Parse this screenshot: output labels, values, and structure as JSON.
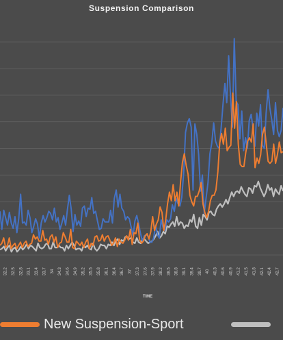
{
  "chart_data": {
    "type": "line",
    "title": "Suspension Comparison",
    "xlabel": "TIME",
    "ylabel": "",
    "x_tick_labels": [
      "32.2",
      "32.5",
      "32.8",
      "33.1",
      "33.4",
      "33.7",
      "34",
      "34.3",
      "34.6",
      "34.9",
      "35.2",
      "35.5",
      "35.8",
      "36.1",
      "36.4",
      "36.7",
      "37",
      "37.3",
      "37.6",
      "37.9",
      "38.2",
      "38.5",
      "38.8",
      "39.1",
      "39.4",
      "39.7",
      "40",
      "40.3",
      "40.6",
      "40.9",
      "41.2",
      "41.5",
      "41.8",
      "42.1",
      "42.4",
      "42.7"
    ],
    "grid": true,
    "legend_position": "bottom",
    "series": [
      {
        "name": "",
        "color": "#4472c4",
        "values": [
          0.41,
          0.24,
          0.42,
          0.35,
          0.28,
          0.4,
          0.3,
          0.25,
          0.36,
          0.21,
          0.34,
          0.57,
          0.3,
          0.31,
          0.28,
          0.42,
          0.35,
          0.21,
          0.27,
          0.34,
          0.29,
          0.16,
          0.3,
          0.37,
          0.31,
          0.35,
          0.41,
          0.39,
          0.33,
          0.44,
          0.31,
          0.35,
          0.24,
          0.3,
          0.37,
          0.28,
          0.43,
          0.56,
          0.43,
          0.22,
          0.38,
          0.28,
          0.32,
          0.27,
          0.44,
          0.46,
          0.36,
          0.44,
          0.43,
          0.54,
          0.39,
          0.41,
          0.32,
          0.24,
          0.25,
          0.34,
          0.31,
          0.31,
          0.31,
          0.42,
          0.3,
          0.53,
          0.61,
          0.45,
          0.57,
          0.44,
          0.41,
          0.33,
          0.36,
          0.34,
          0.26,
          0.18,
          0.32,
          0.37,
          0.29,
          0.2,
          0.13,
          0.18,
          0.19,
          0.18,
          0.12,
          0.12,
          0.16,
          0.28,
          0.19,
          0.16,
          0.33,
          0.26,
          0.23,
          0.33,
          0.31,
          0.34,
          0.47,
          0.41,
          0.53,
          0.48,
          0.46,
          0.54,
          0.77,
          1.15,
          1.24,
          1.28,
          1.2,
          0.61,
          1.23,
          1.13,
          0.94,
          0.6,
          0.75,
          0.39,
          0.54,
          0.68,
          0.95,
          1.05,
          1.24,
          1.07,
          1.02,
          1.0,
          1.19,
          1.42,
          1.61,
          1.43,
          1.87,
          1.49,
          1.2,
          2.03,
          1.44,
          1.41,
          1.09,
          1.35,
          0.98,
          1.1,
          1.0,
          1.26,
          1.32,
          1.19,
          1.02,
          1.33,
          1.21,
          1.41,
          1.03,
          1.0,
          1.33,
          1.55,
          1.38,
          1.27,
          1.13,
          1.43,
          1.17,
          1.11,
          1.17,
          1.38
        ]
      },
      {
        "name": "New Suspension-Sport",
        "color": "#ed7d31",
        "values": [
          0.09,
          0.11,
          0.16,
          0.07,
          0.09,
          0.16,
          0.06,
          0.09,
          0.11,
          0.06,
          0.09,
          0.12,
          0.07,
          0.11,
          0.13,
          0.08,
          0.1,
          0.11,
          0.19,
          0.15,
          0.17,
          0.13,
          0.13,
          0.23,
          0.14,
          0.15,
          0.1,
          0.17,
          0.19,
          0.12,
          0.17,
          0.07,
          0.11,
          0.12,
          0.21,
          0.17,
          0.12,
          0.12,
          0.24,
          0.07,
          0.06,
          0.13,
          0.11,
          0.09,
          0.12,
          0.07,
          0.12,
          0.15,
          0.06,
          0.11,
          0.09,
          0.17,
          0.18,
          0.13,
          0.14,
          0.19,
          0.13,
          0.17,
          0.18,
          0.14,
          0.09,
          0.11,
          0.16,
          0.08,
          0.15,
          0.12,
          0.11,
          0.14,
          0.18,
          0.14,
          0.24,
          0.1,
          0.21,
          0.2,
          0.3,
          0.14,
          0.11,
          0.13,
          0.18,
          0.2,
          0.15,
          0.22,
          0.36,
          0.23,
          0.29,
          0.33,
          0.45,
          0.4,
          0.23,
          0.33,
          0.48,
          0.59,
          0.51,
          0.66,
          0.51,
          0.59,
          0.46,
          0.69,
          0.87,
          0.95,
          0.84,
          0.76,
          0.56,
          0.5,
          0.46,
          0.55,
          0.55,
          0.6,
          0.68,
          0.48,
          0.4,
          0.35,
          0.41,
          0.51,
          0.56,
          0.56,
          0.61,
          0.78,
          1.05,
          1.14,
          1.04,
          1.19,
          0.98,
          1.01,
          1.03,
          1.52,
          1.19,
          1.44,
          1.04,
          0.85,
          0.83,
          0.83,
          0.96,
          1.07,
          1.1,
          1.06,
          1.23,
          0.82,
          0.91,
          0.86,
          0.94,
          1.13,
          1.2,
          1.04,
          0.88,
          0.86,
          0.88,
          1.04,
          0.86,
          0.94,
          1.06,
          0.96,
          0.97
        ]
      },
      {
        "name": "",
        "color": "#bfbfbf",
        "values": [
          0.05,
          0.06,
          0.08,
          0.04,
          0.07,
          0.09,
          0.03,
          0.06,
          0.07,
          0.03,
          0.05,
          0.08,
          0.05,
          0.07,
          0.1,
          0.06,
          0.09,
          0.08,
          0.06,
          0.04,
          0.11,
          0.07,
          0.06,
          0.07,
          0.1,
          0.11,
          0.06,
          0.06,
          0.12,
          0.07,
          0.07,
          0.09,
          0.07,
          0.07,
          0.04,
          0.09,
          0.06,
          0.09,
          0.12,
          0.09,
          0.05,
          0.06,
          0.06,
          0.04,
          0.09,
          0.07,
          0.09,
          0.06,
          0.05,
          0.11,
          0.06,
          0.04,
          0.06,
          0.1,
          0.09,
          0.09,
          0.06,
          0.1,
          0.09,
          0.12,
          0.09,
          0.13,
          0.15,
          0.1,
          0.14,
          0.13,
          0.17,
          0.17,
          0.15,
          0.16,
          0.12,
          0.11,
          0.16,
          0.12,
          0.11,
          0.15,
          0.15,
          0.13,
          0.11,
          0.12,
          0.13,
          0.15,
          0.18,
          0.22,
          0.16,
          0.18,
          0.22,
          0.2,
          0.27,
          0.26,
          0.29,
          0.31,
          0.27,
          0.36,
          0.28,
          0.31,
          0.3,
          0.25,
          0.28,
          0.27,
          0.33,
          0.31,
          0.38,
          0.27,
          0.25,
          0.35,
          0.28,
          0.38,
          0.36,
          0.33,
          0.4,
          0.41,
          0.38,
          0.37,
          0.43,
          0.46,
          0.48,
          0.45,
          0.48,
          0.52,
          0.48,
          0.54,
          0.59,
          0.55,
          0.59,
          0.6,
          0.58,
          0.64,
          0.6,
          0.57,
          0.55,
          0.63,
          0.62,
          0.58,
          0.65,
          0.64,
          0.69,
          0.63,
          0.59,
          0.55,
          0.59,
          0.66,
          0.61,
          0.63,
          0.55,
          0.62,
          0.59,
          0.57,
          0.65,
          0.6
        ]
      }
    ],
    "y_range": [
      0,
      2.2
    ]
  }
}
